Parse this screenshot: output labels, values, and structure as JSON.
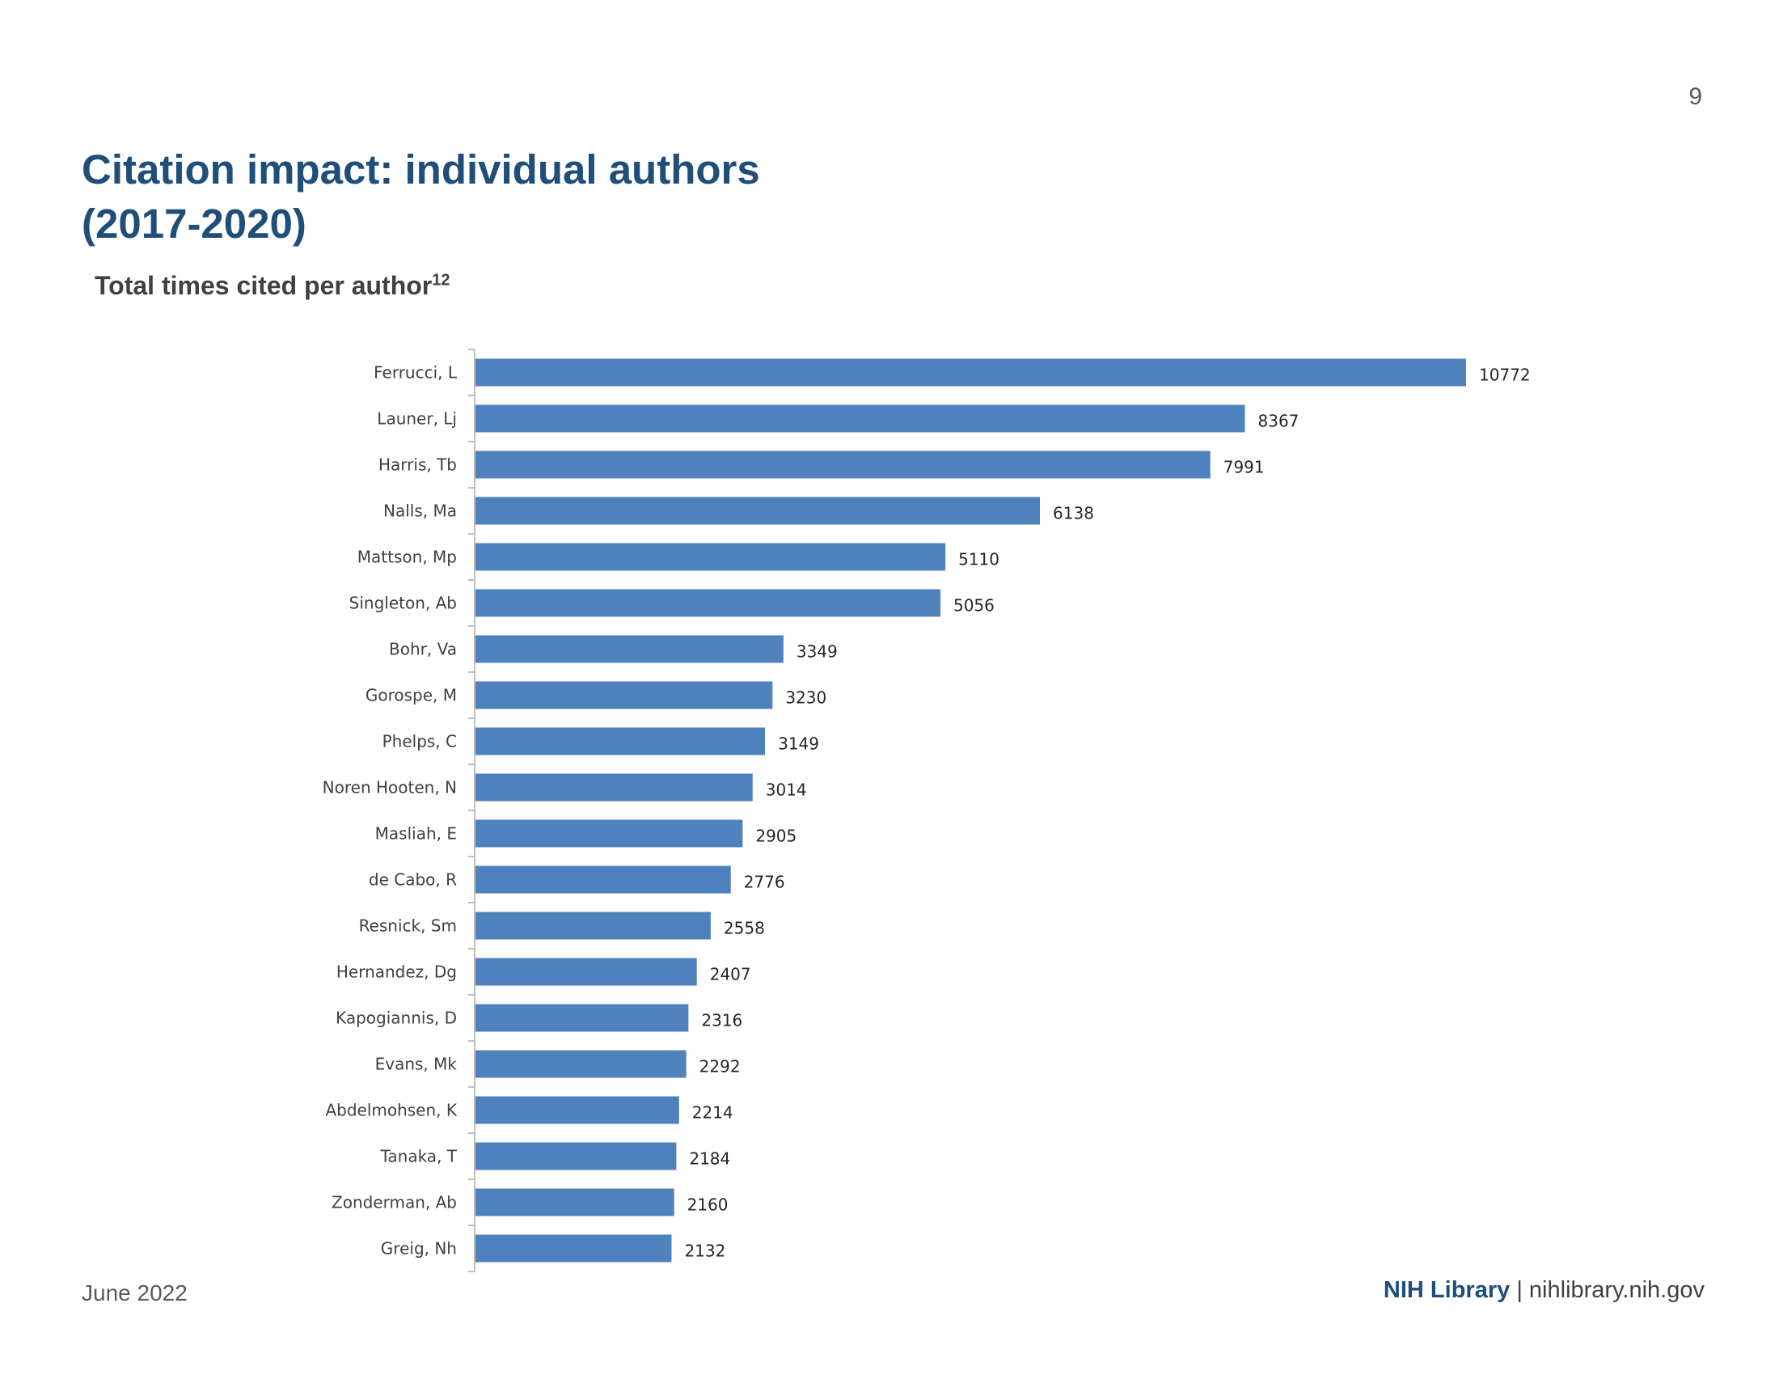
{
  "page": {
    "number": "9"
  },
  "title": {
    "line1": "Citation impact: individual authors",
    "line2": "(2017-2020)"
  },
  "subtitle": {
    "text": "Total times cited per author",
    "sup": "12"
  },
  "footer": {
    "date": "June 2022",
    "brand": "NIH Library",
    "separator": "|",
    "url": "nihlibrary.nih.gov"
  },
  "colors": {
    "bar": "#4f81bd",
    "title": "#1f4e79"
  },
  "chart_data": {
    "type": "bar",
    "orientation": "horizontal",
    "title": "Total times cited per author",
    "xlabel": "",
    "ylabel": "",
    "xlim": [
      0,
      11500
    ],
    "grid": false,
    "categories": [
      "Ferrucci, L",
      "Launer, Lj",
      "Harris, Tb",
      "Nalls, Ma",
      "Mattson, Mp",
      "Singleton, Ab",
      "Bohr, Va",
      "Gorospe, M",
      "Phelps, C",
      "Noren Hooten, N",
      "Masliah, E",
      "de Cabo, R",
      "Resnick, Sm",
      "Hernandez, Dg",
      "Kapogiannis, D",
      "Evans, Mk",
      "Abdelmohsen, K",
      "Tanaka, T",
      "Zonderman, Ab",
      "Greig, Nh"
    ],
    "values": [
      10772,
      8367,
      7991,
      6138,
      5110,
      5056,
      3349,
      3230,
      3149,
      3014,
      2905,
      2776,
      2558,
      2407,
      2316,
      2292,
      2214,
      2184,
      2160,
      2132
    ]
  }
}
